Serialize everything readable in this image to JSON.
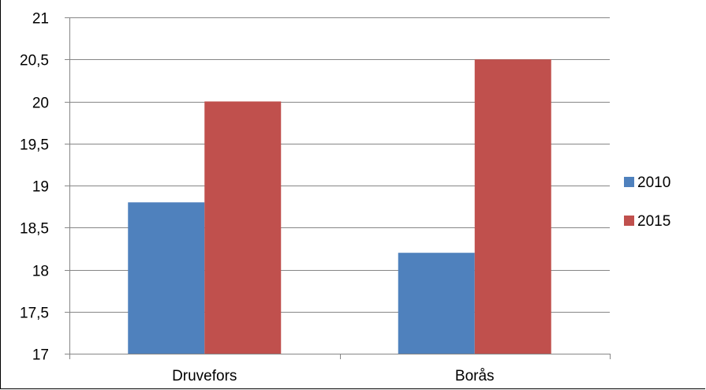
{
  "chart_data": {
    "type": "bar",
    "categories": [
      "Druvefors",
      "Borås"
    ],
    "series": [
      {
        "name": "2010",
        "values": [
          18.8,
          18.2
        ],
        "color": "#4F81BD"
      },
      {
        "name": "2015",
        "values": [
          20.0,
          20.5
        ],
        "color": "#C0504D"
      }
    ],
    "y_ticks": [
      "17",
      "17,5",
      "18",
      "18,5",
      "19",
      "19,5",
      "20",
      "20,5",
      "21"
    ],
    "ylim": [
      17,
      21
    ],
    "grid": true,
    "legend_position": "right",
    "title": "",
    "xlabel": "",
    "ylabel": ""
  }
}
